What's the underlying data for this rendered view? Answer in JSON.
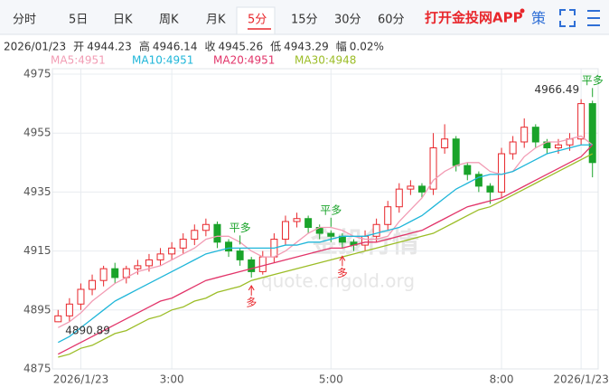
{
  "tabs": [
    "分时",
    "5日",
    "日K",
    "周K",
    "月K",
    "5分",
    "15分",
    "30分",
    "60分"
  ],
  "active_tab": 5,
  "app_link": "打开金投网APP",
  "strategy": "策",
  "info": {
    "date": "2026/01/23",
    "open_label": "开",
    "open": 4944.23,
    "high_label": "高",
    "high": 4946.14,
    "close_label": "收",
    "close": 4945.26,
    "low_label": "低",
    "low": 4943.29,
    "range_label": "幅",
    "range": "0.02%"
  },
  "watermark": {
    "cn": "金投行情",
    "url": "quote.cngold.org"
  },
  "chart_data": {
    "type": "candlestick",
    "open": [
      4891,
      4893,
      4897,
      4902,
      4905,
      4909,
      4906,
      4909,
      4910,
      4912,
      4914,
      4916,
      4919,
      4922,
      4924,
      4918,
      4915,
      4912,
      4908,
      4913,
      4919,
      4925,
      4926,
      4923,
      4921,
      4920,
      4918,
      4917,
      4920,
      4924,
      4930,
      4936,
      4937,
      4936,
      4950,
      4953,
      4944,
      4941,
      4937,
      4935,
      4948,
      4952,
      4957,
      4952,
      4950,
      4951,
      4953,
      4965
    ],
    "high": [
      4895,
      4899,
      4904,
      4907,
      4910,
      4911,
      4910,
      4912,
      4914,
      4916,
      4918,
      4921,
      4924,
      4926,
      4925,
      4919,
      4916,
      4913,
      4915,
      4921,
      4927,
      4928,
      4927,
      4924,
      4922,
      4921,
      4919,
      4922,
      4926,
      4932,
      4938,
      4939,
      4938,
      4955,
      4958,
      4954,
      4945,
      4942,
      4938,
      4950,
      4954,
      4960,
      4958,
      4953,
      4953,
      4955,
      4966.49,
      4966
    ],
    "low": [
      4890.89,
      4891,
      4895,
      4900,
      4903,
      4904,
      4904,
      4907,
      4908,
      4910,
      4912,
      4914,
      4917,
      4920,
      4916,
      4913,
      4910,
      4906,
      4907,
      4911,
      4917,
      4923,
      4921,
      4919,
      4918,
      4916,
      4915,
      4915,
      4918,
      4922,
      4928,
      4934,
      4933,
      4934,
      4948,
      4942,
      4939,
      4935,
      4931,
      4933,
      4946,
      4950,
      4950,
      4948,
      4948,
      4949,
      4951,
      4940
    ],
    "close": [
      4893,
      4897,
      4902,
      4905,
      4909,
      4906,
      4909,
      4910,
      4912,
      4914,
      4916,
      4919,
      4922,
      4924,
      4918,
      4915,
      4912,
      4908,
      4913,
      4919,
      4925,
      4926,
      4923,
      4921,
      4920,
      4918,
      4917,
      4920,
      4924,
      4930,
      4936,
      4937,
      4935,
      4950,
      4953,
      4944,
      4941,
      4937,
      4935,
      4948,
      4952,
      4957,
      4952,
      4950,
      4951,
      4953,
      4965,
      4945
    ],
    "up_color": "#e8262b",
    "down_color": "#1aa32a",
    "series": [
      {
        "name": "MA5",
        "legend": "4951",
        "color": "#f29cb4",
        "values": [
          4889,
          4891,
          4894,
          4898,
          4901,
          4904,
          4906,
          4908,
          4909,
          4910,
          4912,
          4914,
          4916,
          4919,
          4920,
          4920,
          4918,
          4915,
          4913,
          4913,
          4915,
          4918,
          4921,
          4923,
          4923,
          4922,
          4920,
          4919,
          4919,
          4920,
          4925,
          4929,
          4933,
          4939,
          4942,
          4944,
          4945,
          4945,
          4942,
          4941,
          4942,
          4947,
          4950,
          4952,
          4952,
          4953,
          4954,
          4951
        ]
      },
      {
        "name": "MA10",
        "legend": "4951",
        "color": "#1fb6d9",
        "values": [
          4884,
          4886,
          4889,
          4892,
          4895,
          4898,
          4900,
          4902,
          4904,
          4906,
          4908,
          4910,
          4912,
          4914,
          4915,
          4916,
          4916,
          4916,
          4916,
          4916,
          4917,
          4917,
          4918,
          4918,
          4919,
          4920,
          4920,
          4920,
          4921,
          4922,
          4923,
          4925,
          4927,
          4930,
          4933,
          4936,
          4938,
          4940,
          4941,
          4941,
          4942,
          4944,
          4946,
          4948,
          4949,
          4950,
          4951,
          4951
        ]
      },
      {
        "name": "MA20",
        "legend": "4951",
        "color": "#e2356a",
        "values": [
          4880,
          4882,
          4884,
          4886,
          4888,
          4890,
          4892,
          4894,
          4896,
          4898,
          4899,
          4901,
          4903,
          4905,
          4906,
          4907,
          4908,
          4909,
          4910,
          4911,
          4912,
          4913,
          4914,
          4915,
          4916,
          4916,
          4917,
          4918,
          4918,
          4919,
          4920,
          4921,
          4922,
          4924,
          4926,
          4928,
          4930,
          4931,
          4932,
          4933,
          4935,
          4937,
          4939,
          4941,
          4943,
          4945,
          4947,
          4951
        ]
      },
      {
        "name": "MA30",
        "legend": "4948",
        "color": "#9cbd27",
        "values": [
          4879,
          4880,
          4882,
          4883,
          4885,
          4887,
          4888,
          4890,
          4892,
          4893,
          4895,
          4896,
          4898,
          4899,
          4901,
          4902,
          4903,
          4905,
          4906,
          4907,
          4908,
          4909,
          4910,
          4911,
          4912,
          4913,
          4914,
          4915,
          4916,
          4917,
          4918,
          4919,
          4920,
          4921,
          4923,
          4925,
          4927,
          4929,
          4930,
          4932,
          4934,
          4936,
          4938,
          4940,
          4942,
          4944,
          4946,
          4948
        ]
      }
    ],
    "ylim": [
      4875,
      4975
    ],
    "yticks": [
      4875,
      4895,
      4915,
      4935,
      4955,
      4975
    ],
    "xticks": [
      {
        "value": 2,
        "label": "2026/1/23"
      },
      {
        "value": 10,
        "label": "3:00"
      },
      {
        "value": 24,
        "label": "5:00"
      },
      {
        "value": 39,
        "label": "8:00"
      },
      {
        "value": 46,
        "label": "2026/1/23"
      }
    ],
    "signals": [
      {
        "label": "平多",
        "index": 16,
        "kind": "close"
      },
      {
        "label": "多",
        "index": 17,
        "kind": "open"
      },
      {
        "label": "平多",
        "index": 24,
        "kind": "close"
      },
      {
        "label": "多",
        "index": 25,
        "kind": "open"
      },
      {
        "label": "平多",
        "index": 47,
        "kind": "close"
      }
    ],
    "grid": true
  }
}
